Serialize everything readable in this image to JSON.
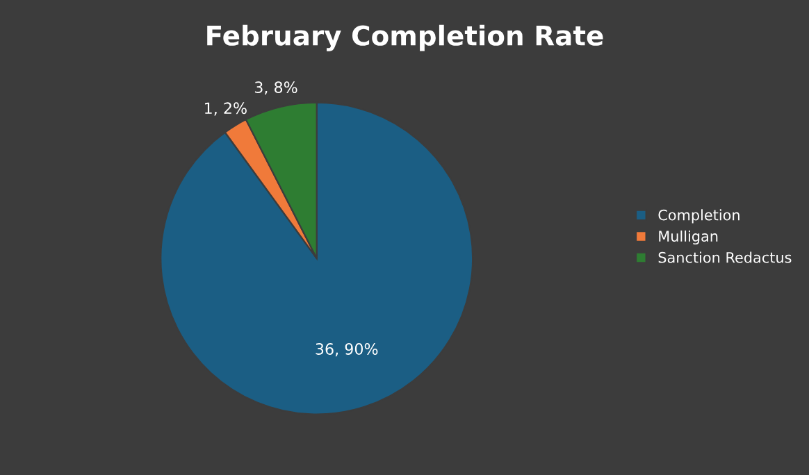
{
  "chart_data": {
    "type": "pie",
    "title": "February Completion Rate",
    "categories": [
      "Completion",
      "Mulligan",
      "Sanction Redactus"
    ],
    "values": [
      36,
      1,
      3
    ],
    "colors": [
      "#1b5e84",
      "#f07a3a",
      "#2e7d32"
    ],
    "value_labels": [
      "36, 90%",
      "1, 2%",
      "3, 8%"
    ],
    "legend": "right"
  }
}
